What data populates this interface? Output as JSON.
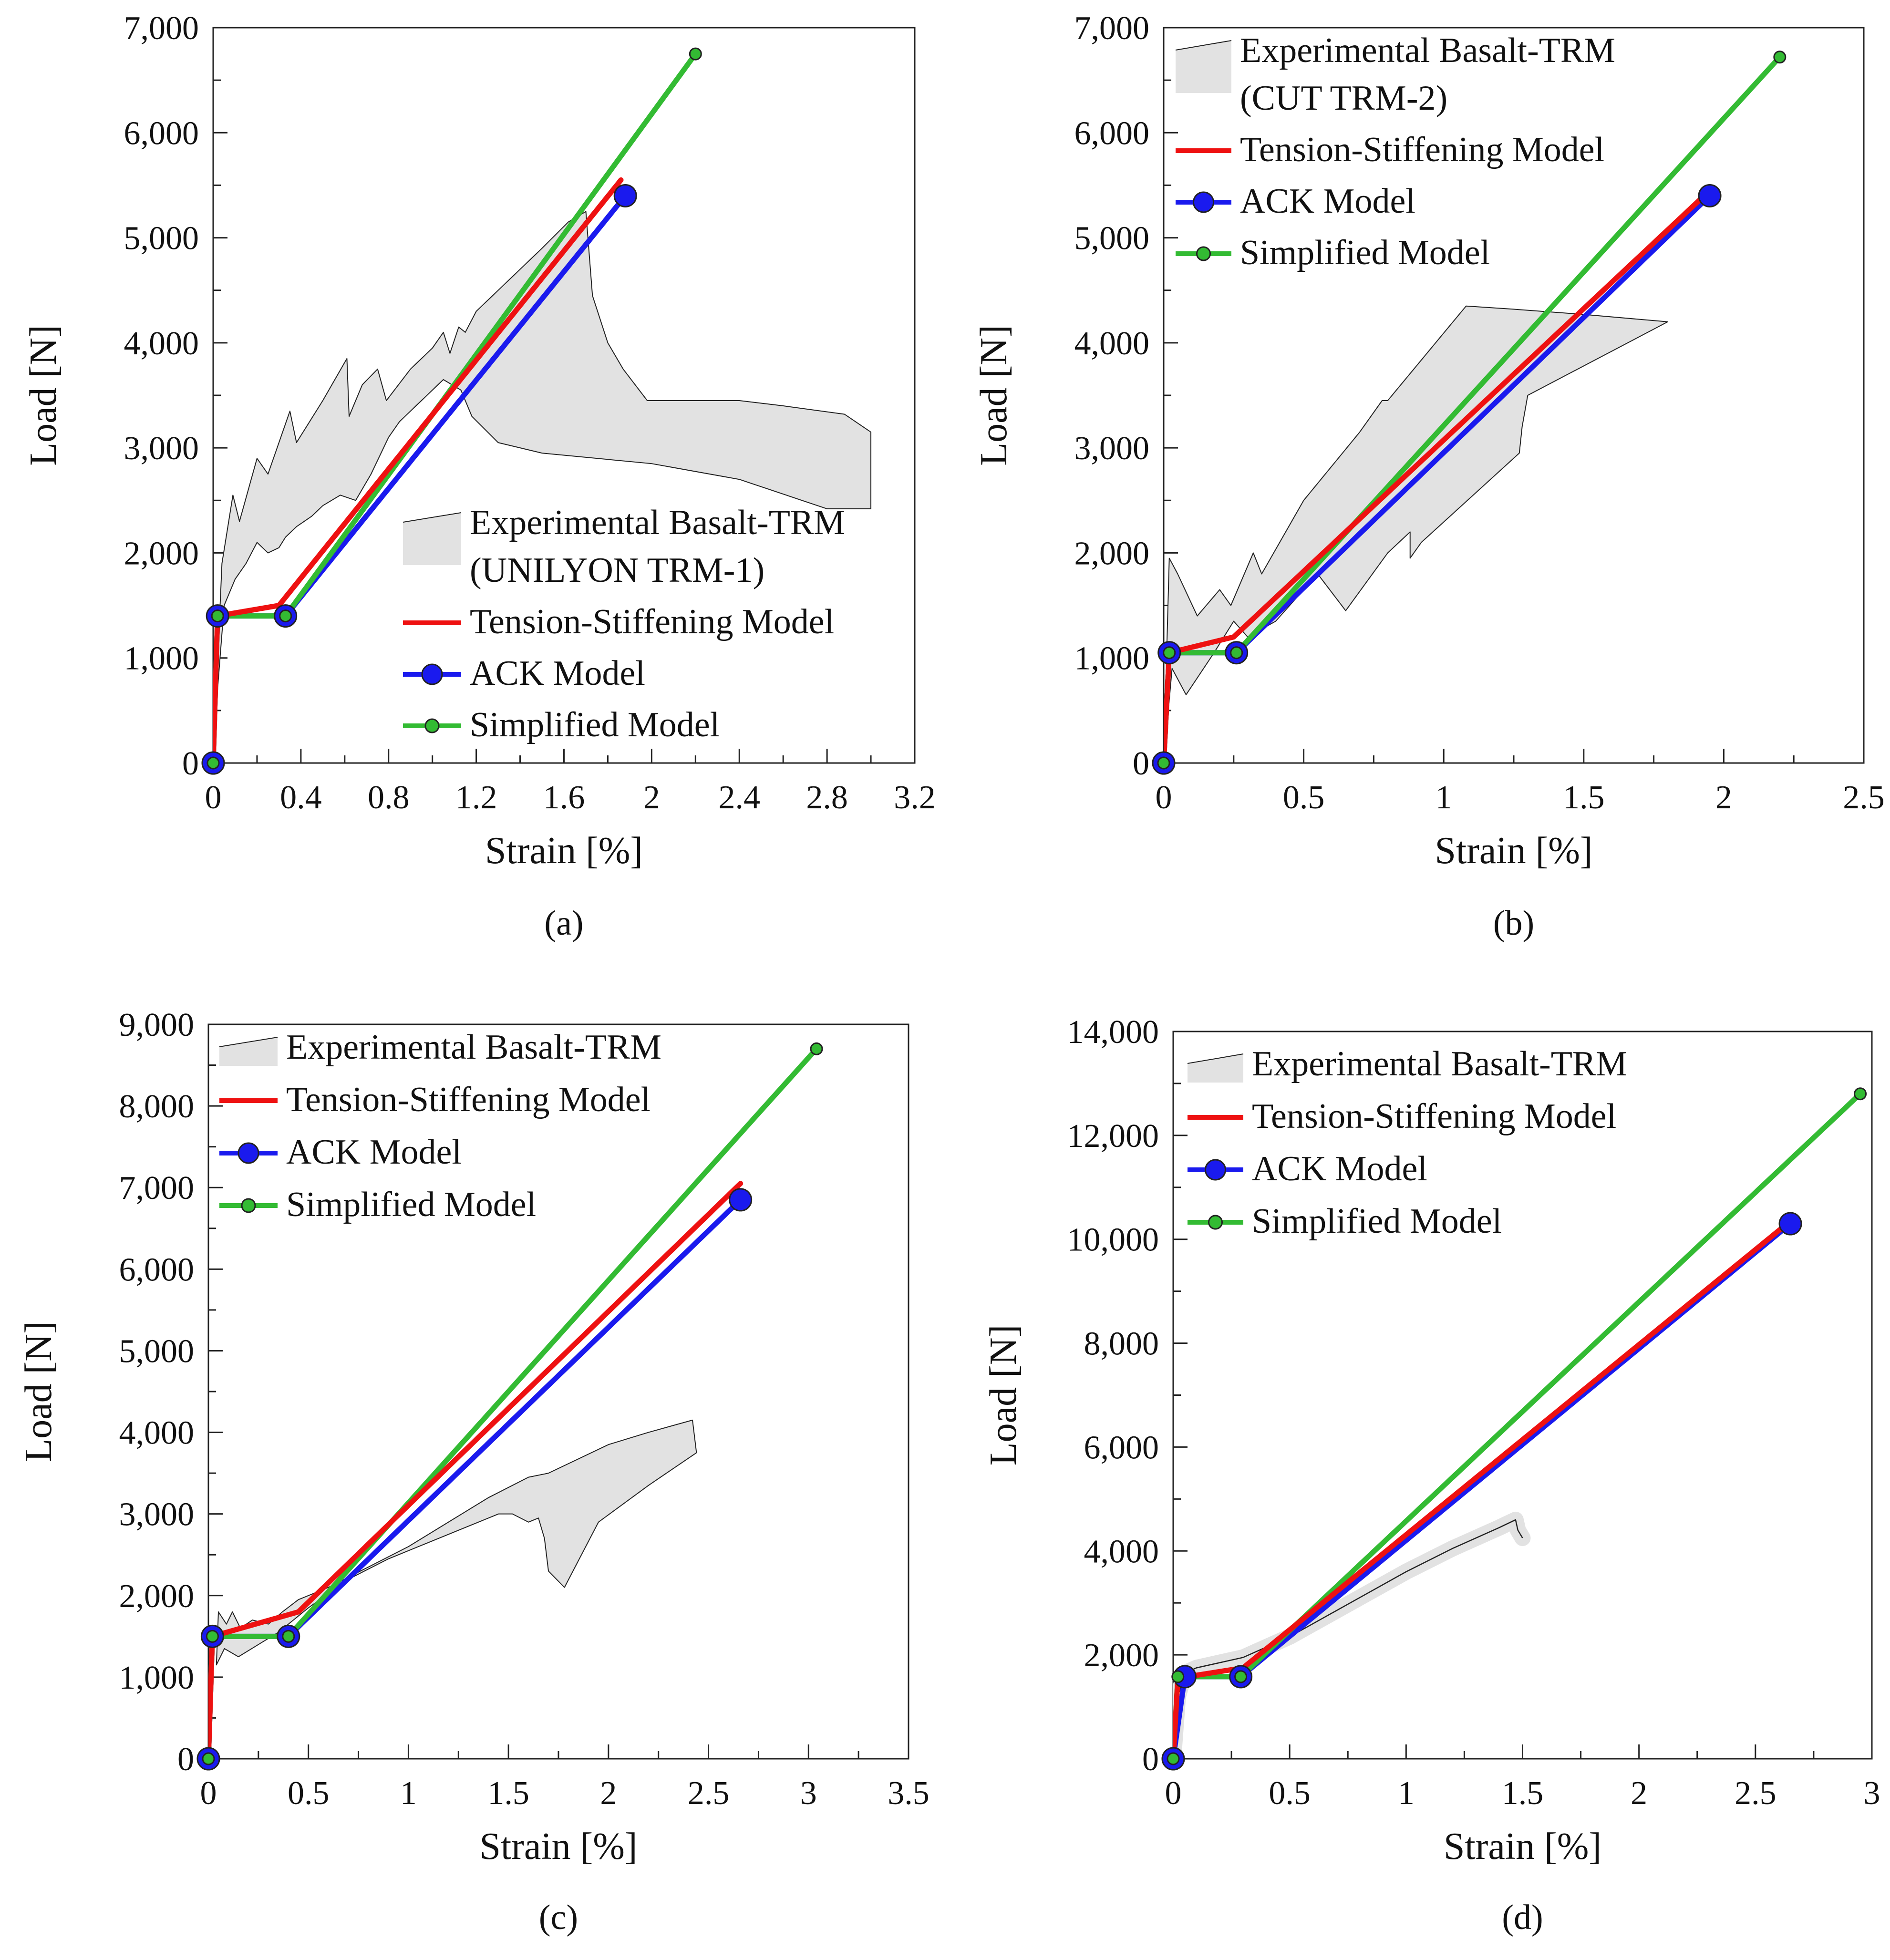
{
  "figure": {
    "colors": {
      "tension_stiffening": "#ee1111",
      "ack": "#1a1aee",
      "simplified": "#33bb33",
      "envelope_fill": "#e2e2e2",
      "envelope_stroke": "#222222"
    }
  },
  "chart_data": [
    {
      "type": "line",
      "panel_label": "(a)",
      "xlabel": "Strain  [%]",
      "ylabel": "Load [N]",
      "xlim": [
        0,
        3.2
      ],
      "ylim": [
        0,
        7000
      ],
      "xticks": [
        0,
        0.4,
        0.8,
        1.2,
        1.6,
        2,
        2.4,
        2.8,
        3.2
      ],
      "xtick_labels": [
        "0",
        "0.4",
        "0.8",
        "1.2",
        "1.6",
        "2",
        "2.4",
        "2.8",
        "3.2"
      ],
      "yticks": [
        0,
        1000,
        2000,
        3000,
        4000,
        5000,
        6000,
        7000
      ],
      "ytick_labels": [
        "0",
        "1,000",
        "2,000",
        "3,000",
        "4,000",
        "5,000",
        "6,000",
        "7,000"
      ],
      "legend_position": "bottom-right",
      "legend": [
        {
          "key": "experimental",
          "label_lines": [
            "Experimental Basalt-TRM",
            "(UNILYON TRM-1)"
          ]
        },
        {
          "key": "tension_stiffening",
          "label_lines": [
            "Tension-Stiffening Model"
          ]
        },
        {
          "key": "ack",
          "label_lines": [
            "ACK Model"
          ]
        },
        {
          "key": "simplified",
          "label_lines": [
            "Simplified Model"
          ]
        }
      ],
      "envelope": [
        [
          0,
          0
        ],
        [
          0.04,
          1900
        ],
        [
          0.09,
          2550
        ],
        [
          0.12,
          2300
        ],
        [
          0.2,
          2900
        ],
        [
          0.25,
          2750
        ],
        [
          0.35,
          3350
        ],
        [
          0.38,
          3050
        ],
        [
          0.5,
          3450
        ],
        [
          0.61,
          3850
        ],
        [
          0.62,
          3300
        ],
        [
          0.68,
          3600
        ],
        [
          0.75,
          3750
        ],
        [
          0.79,
          3450
        ],
        [
          0.9,
          3750
        ],
        [
          1.0,
          3950
        ],
        [
          1.05,
          4100
        ],
        [
          1.08,
          3900
        ],
        [
          1.12,
          4150
        ],
        [
          1.15,
          4100
        ],
        [
          1.2,
          4300
        ],
        [
          1.35,
          4600
        ],
        [
          1.5,
          4900
        ],
        [
          1.62,
          5150
        ],
        [
          1.7,
          5250
        ],
        [
          1.73,
          4450
        ],
        [
          1.8,
          4000
        ],
        [
          1.87,
          3750
        ],
        [
          1.98,
          3450
        ],
        [
          2.4,
          3450
        ],
        [
          2.6,
          3400
        ],
        [
          2.88,
          3320
        ],
        [
          3.0,
          3150
        ],
        [
          3.0,
          2420
        ],
        [
          2.8,
          2420
        ],
        [
          2.4,
          2700
        ],
        [
          2.0,
          2850
        ],
        [
          1.5,
          2950
        ],
        [
          1.3,
          3050
        ],
        [
          1.18,
          3300
        ],
        [
          1.13,
          3550
        ],
        [
          1.05,
          3650
        ],
        [
          0.95,
          3450
        ],
        [
          0.85,
          3250
        ],
        [
          0.8,
          3100
        ],
        [
          0.72,
          2750
        ],
        [
          0.65,
          2500
        ],
        [
          0.58,
          2550
        ],
        [
          0.5,
          2450
        ],
        [
          0.45,
          2350
        ],
        [
          0.38,
          2250
        ],
        [
          0.33,
          2150
        ],
        [
          0.3,
          2050
        ],
        [
          0.25,
          2000
        ],
        [
          0.2,
          2100
        ],
        [
          0.15,
          1900
        ],
        [
          0.1,
          1750
        ],
        [
          0.05,
          1500
        ],
        [
          0.02,
          700
        ]
      ],
      "series": [
        {
          "name": "Tension-Stiffening Model",
          "key": "tension_stiffening",
          "x": [
            0,
            0.02,
            0.3,
            1.86
          ],
          "y": [
            0,
            1400,
            1500,
            5550
          ]
        },
        {
          "name": "ACK Model",
          "key": "ack",
          "x": [
            0,
            0.02,
            0.33,
            1.88
          ],
          "y": [
            0,
            1400,
            1400,
            5400
          ],
          "marker_points": [
            0,
            1,
            2,
            3
          ]
        },
        {
          "name": "Simplified Model",
          "key": "simplified",
          "x": [
            0,
            0.02,
            0.33,
            2.2
          ],
          "y": [
            0,
            1400,
            1400,
            6750
          ],
          "marker_points": [
            0,
            1,
            2,
            3
          ]
        }
      ]
    },
    {
      "type": "line",
      "panel_label": "(b)",
      "xlabel": "Strain  [%]",
      "ylabel": "Load [N]",
      "xlim": [
        0,
        2.5
      ],
      "ylim": [
        0,
        7000
      ],
      "xticks": [
        0,
        0.5,
        1,
        1.5,
        2,
        2.5
      ],
      "xtick_labels": [
        "0",
        "0.5",
        "1",
        "1.5",
        "2",
        "2.5"
      ],
      "yticks": [
        0,
        1000,
        2000,
        3000,
        4000,
        5000,
        6000,
        7000
      ],
      "ytick_labels": [
        "0",
        "1,000",
        "2,000",
        "3,000",
        "4,000",
        "5,000",
        "6,000",
        "7,000"
      ],
      "legend_position": "top-left",
      "legend": [
        {
          "key": "experimental",
          "label_lines": [
            "Experimental Basalt-TRM",
            "(CUT TRM-2)"
          ]
        },
        {
          "key": "tension_stiffening",
          "label_lines": [
            "Tension-Stiffening Model"
          ]
        },
        {
          "key": "ack",
          "label_lines": [
            "ACK Model"
          ]
        },
        {
          "key": "simplified",
          "label_lines": [
            "Simplified Model"
          ]
        }
      ],
      "envelope": [
        [
          0,
          0
        ],
        [
          0.02,
          1950
        ],
        [
          0.05,
          1800
        ],
        [
          0.12,
          1400
        ],
        [
          0.2,
          1650
        ],
        [
          0.24,
          1500
        ],
        [
          0.32,
          2000
        ],
        [
          0.35,
          1800
        ],
        [
          0.5,
          2500
        ],
        [
          0.7,
          3150
        ],
        [
          0.78,
          3450
        ],
        [
          0.8,
          3450
        ],
        [
          1.08,
          4350
        ],
        [
          1.25,
          4320
        ],
        [
          1.5,
          4270
        ],
        [
          1.8,
          4200
        ],
        [
          1.3,
          3500
        ],
        [
          1.28,
          3200
        ],
        [
          1.27,
          2950
        ],
        [
          0.92,
          2100
        ],
        [
          0.88,
          1950
        ],
        [
          0.88,
          2200
        ],
        [
          0.8,
          2000
        ],
        [
          0.65,
          1450
        ],
        [
          0.55,
          1800
        ],
        [
          0.4,
          1350
        ],
        [
          0.3,
          1200
        ],
        [
          0.25,
          1350
        ],
        [
          0.18,
          1050
        ],
        [
          0.08,
          650
        ],
        [
          0.03,
          900
        ]
      ],
      "series": [
        {
          "name": "Tension-Stiffening Model",
          "key": "tension_stiffening",
          "x": [
            0,
            0.02,
            0.25,
            1.95
          ],
          "y": [
            0,
            1050,
            1200,
            5450
          ]
        },
        {
          "name": "ACK Model",
          "key": "ack",
          "x": [
            0,
            0.02,
            0.26,
            1.95
          ],
          "y": [
            0,
            1050,
            1050,
            5400
          ],
          "marker_points": [
            0,
            1,
            2,
            3
          ]
        },
        {
          "name": "Simplified Model",
          "key": "simplified",
          "x": [
            0,
            0.02,
            0.26,
            2.2
          ],
          "y": [
            0,
            1050,
            1050,
            6720
          ],
          "marker_points": [
            0,
            1,
            2,
            3
          ]
        }
      ]
    },
    {
      "type": "line",
      "panel_label": "(c)",
      "xlabel": "Strain  [%]",
      "ylabel": "Load [N]",
      "xlim": [
        0,
        3.5
      ],
      "ylim": [
        0,
        9000
      ],
      "xticks": [
        0,
        0.5,
        1,
        1.5,
        2,
        2.5,
        3,
        3.5
      ],
      "xtick_labels": [
        "0",
        "0.5",
        "1",
        "1.5",
        "2",
        "2.5",
        "3",
        "3.5"
      ],
      "yticks": [
        0,
        1000,
        2000,
        3000,
        4000,
        5000,
        6000,
        7000,
        8000,
        9000
      ],
      "ytick_labels": [
        "0",
        "1,000",
        "2,000",
        "3,000",
        "4,000",
        "5,000",
        "6,000",
        "7,000",
        "8,000",
        "9,000"
      ],
      "legend_position": "top-left",
      "legend": [
        {
          "key": "experimental",
          "label_lines": [
            "Experimental Basalt-TRM"
          ]
        },
        {
          "key": "tension_stiffening",
          "label_lines": [
            "Tension-Stiffening Model"
          ]
        },
        {
          "key": "ack",
          "label_lines": [
            "ACK Model"
          ]
        },
        {
          "key": "simplified",
          "label_lines": [
            "Simplified Model"
          ]
        }
      ],
      "envelope": [
        [
          0.04,
          1150
        ],
        [
          0.05,
          1800
        ],
        [
          0.09,
          1650
        ],
        [
          0.12,
          1800
        ],
        [
          0.16,
          1600
        ],
        [
          0.22,
          1700
        ],
        [
          0.3,
          1650
        ],
        [
          0.37,
          1800
        ],
        [
          0.45,
          1950
        ],
        [
          0.6,
          2100
        ],
        [
          0.8,
          2350
        ],
        [
          1.0,
          2600
        ],
        [
          1.2,
          2900
        ],
        [
          1.4,
          3200
        ],
        [
          1.6,
          3450
        ],
        [
          1.7,
          3500
        ],
        [
          2.0,
          3850
        ],
        [
          2.2,
          4000
        ],
        [
          2.42,
          4150
        ],
        [
          2.44,
          3750
        ],
        [
          2.2,
          3350
        ],
        [
          1.95,
          2900
        ],
        [
          1.78,
          2100
        ],
        [
          1.7,
          2300
        ],
        [
          1.68,
          2700
        ],
        [
          1.65,
          2950
        ],
        [
          1.6,
          2900
        ],
        [
          1.52,
          3000
        ],
        [
          1.45,
          3000
        ],
        [
          1.3,
          2850
        ],
        [
          1.1,
          2650
        ],
        [
          0.9,
          2450
        ],
        [
          0.7,
          2200
        ],
        [
          0.5,
          1850
        ],
        [
          0.35,
          1550
        ],
        [
          0.25,
          1400
        ],
        [
          0.15,
          1250
        ],
        [
          0.08,
          1350
        ]
      ],
      "series": [
        {
          "name": "Tension-Stiffening Model",
          "key": "tension_stiffening",
          "x": [
            0,
            0.02,
            0.45,
            2.66
          ],
          "y": [
            0,
            1500,
            1800,
            7050
          ]
        },
        {
          "name": "ACK Model",
          "key": "ack",
          "x": [
            0,
            0.02,
            0.4,
            2.66
          ],
          "y": [
            0,
            1500,
            1500,
            6850
          ],
          "marker_points": [
            0,
            1,
            2,
            3
          ]
        },
        {
          "name": "Simplified Model",
          "key": "simplified",
          "x": [
            0,
            0.02,
            0.4,
            3.04
          ],
          "y": [
            0,
            1500,
            1500,
            8700
          ],
          "marker_points": [
            0,
            1,
            2,
            3
          ]
        }
      ]
    },
    {
      "type": "line",
      "panel_label": "(d)",
      "xlabel": "Strain  [%]",
      "ylabel": "Load [N]",
      "xlim": [
        0,
        3
      ],
      "ylim": [
        0,
        14000
      ],
      "xticks": [
        0,
        0.5,
        1,
        1.5,
        2,
        2.5,
        3
      ],
      "xtick_labels": [
        "0",
        "0.5",
        "1",
        "1.5",
        "2",
        "2.5",
        "3"
      ],
      "yticks": [
        0,
        2000,
        4000,
        6000,
        8000,
        10000,
        12000,
        14000
      ],
      "ytick_labels": [
        "0",
        "2,000",
        "4,000",
        "6,000",
        "8,000",
        "10,000",
        "12,000",
        "14,000"
      ],
      "legend_position": "top-left",
      "legend": [
        {
          "key": "experimental",
          "label_lines": [
            "Experimental Basalt-TRM"
          ]
        },
        {
          "key": "tension_stiffening",
          "label_lines": [
            "Tension-Stiffening Model"
          ]
        },
        {
          "key": "ack",
          "label_lines": [
            "ACK Model"
          ]
        },
        {
          "key": "simplified",
          "label_lines": [
            "Simplified Model"
          ]
        }
      ],
      "experimental_curve": {
        "x": [
          0,
          0.02,
          0.05,
          0.1,
          0.2,
          0.3,
          0.4,
          0.5,
          0.6,
          0.8,
          1.0,
          1.2,
          1.4,
          1.47,
          1.48,
          1.5
        ],
        "y": [
          0,
          1200,
          1650,
          1750,
          1850,
          1950,
          2150,
          2350,
          2600,
          3100,
          3600,
          4050,
          4450,
          4600,
          4400,
          4250
        ]
      },
      "series": [
        {
          "name": "Tension-Stiffening Model",
          "key": "tension_stiffening",
          "x": [
            0,
            0.02,
            0.3,
            2.65
          ],
          "y": [
            0,
            1550,
            1750,
            10350
          ]
        },
        {
          "name": "ACK Model",
          "key": "ack",
          "x": [
            0,
            0.05,
            0.29,
            2.65
          ],
          "y": [
            0,
            1580,
            1580,
            10300
          ],
          "marker_points": [
            0,
            1,
            2,
            3
          ]
        },
        {
          "name": "Simplified Model",
          "key": "simplified",
          "x": [
            0,
            0.02,
            0.29,
            2.95
          ],
          "y": [
            0,
            1580,
            1580,
            12800
          ],
          "marker_points": [
            0,
            1,
            2,
            3
          ]
        }
      ]
    }
  ]
}
